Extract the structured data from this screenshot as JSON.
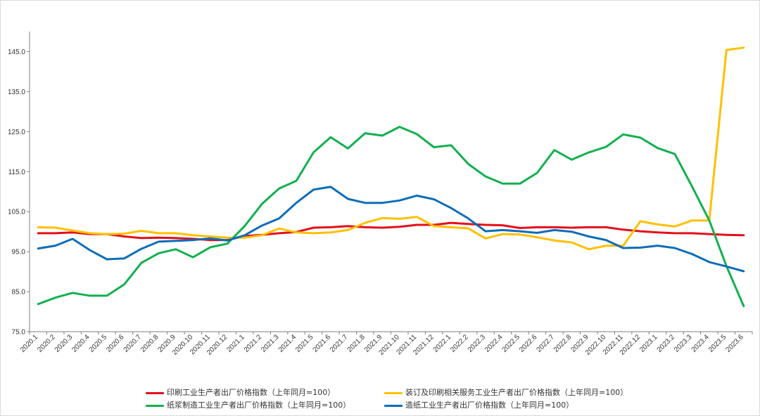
{
  "chart_data": {
    "type": "line",
    "title": "",
    "xlabel": "",
    "ylabel": "",
    "ylim": [
      75,
      150
    ],
    "yticks": [
      75,
      85,
      95,
      105,
      115,
      125,
      135,
      145
    ],
    "ytick_labels": [
      "75.0",
      "85.0",
      "95.0",
      "105.0",
      "115.0",
      "125.0",
      "135.0",
      "145.0"
    ],
    "grid": false,
    "legend_position": "bottom",
    "categories": [
      "2020.1",
      "2020.2",
      "2020.3",
      "2020.4",
      "2020.5",
      "2020.6",
      "2020.7",
      "2020.8",
      "2020.9",
      "2020.10",
      "2020.11",
      "2020.12",
      "2021.1",
      "2021.2",
      "2021.3",
      "2021.4",
      "2021.5",
      "2021.6",
      "2021.7",
      "2021.8",
      "2021.9",
      "2021.10",
      "2021.11",
      "2021.12",
      "2022.1",
      "2022.2",
      "2022.3",
      "2022.4",
      "2022.5",
      "2022.6",
      "2022.7",
      "2022.8",
      "2022.9",
      "2022.10",
      "2022.11",
      "2022.12",
      "2023.1",
      "2023.2",
      "2023.3",
      "2023.4",
      "2023.5",
      "2023.6"
    ],
    "series": [
      {
        "name": "印刷工业生产者出厂价格指数（上年同月=100）",
        "color": "#e3101b",
        "values": [
          99.6,
          99.6,
          99.8,
          99.4,
          99.4,
          98.8,
          98.4,
          98.5,
          98.4,
          98.2,
          97.9,
          97.9,
          98.9,
          99.2,
          99.6,
          99.9,
          101.0,
          101.1,
          101.4,
          101.1,
          101.0,
          101.2,
          101.7,
          101.7,
          102.2,
          101.9,
          101.7,
          101.6,
          100.9,
          101.1,
          101.1,
          101.0,
          101.1,
          101.1,
          100.5,
          100.1,
          99.8,
          99.6,
          99.6,
          99.4,
          99.2,
          99.1
        ]
      },
      {
        "name": "装订及印刷相关服务工业生产者出厂价格指数（上年同月=100）",
        "color": "#ffc000",
        "values": [
          101.1,
          101.0,
          100.3,
          99.6,
          99.4,
          99.5,
          100.2,
          99.6,
          99.6,
          99.1,
          98.8,
          98.5,
          98.5,
          99.1,
          100.8,
          99.8,
          99.6,
          99.8,
          100.4,
          102.2,
          103.4,
          103.2,
          103.7,
          101.4,
          101.1,
          100.8,
          98.3,
          99.4,
          99.3,
          98.6,
          97.8,
          97.3,
          95.6,
          96.5,
          96.5,
          102.6,
          101.8,
          101.3,
          102.8,
          102.8,
          145.4,
          146.0
        ]
      },
      {
        "name": "纸浆制造工业生产者出厂价格指数（上年同月=100）",
        "color": "#13b04f",
        "values": [
          81.9,
          83.5,
          84.7,
          84.0,
          84.0,
          86.8,
          92.2,
          94.6,
          95.6,
          93.6,
          96.1,
          97.0,
          101.4,
          106.9,
          110.8,
          112.7,
          119.8,
          123.6,
          120.8,
          124.6,
          124.0,
          126.2,
          124.4,
          121.1,
          121.6,
          116.9,
          113.8,
          112.0,
          112.0,
          114.7,
          120.4,
          118.0,
          119.8,
          121.2,
          124.3,
          123.5,
          120.9,
          119.4,
          111.3,
          102.8,
          91.4,
          81.4
        ]
      },
      {
        "name": "造纸工业生产者出厂价格指数（上年同月=100）",
        "color": "#0e6db8",
        "values": [
          95.8,
          96.5,
          98.2,
          95.4,
          93.1,
          93.3,
          95.7,
          97.5,
          97.7,
          97.9,
          98.3,
          97.8,
          99.1,
          101.5,
          103.3,
          107.2,
          110.5,
          111.2,
          108.2,
          107.2,
          107.2,
          107.8,
          109.0,
          108.1,
          105.9,
          103.3,
          100.1,
          100.4,
          100.1,
          99.7,
          100.4,
          100.0,
          98.8,
          97.9,
          95.9,
          96.0,
          96.5,
          95.9,
          94.4,
          92.4,
          91.3,
          90.1
        ]
      }
    ]
  }
}
